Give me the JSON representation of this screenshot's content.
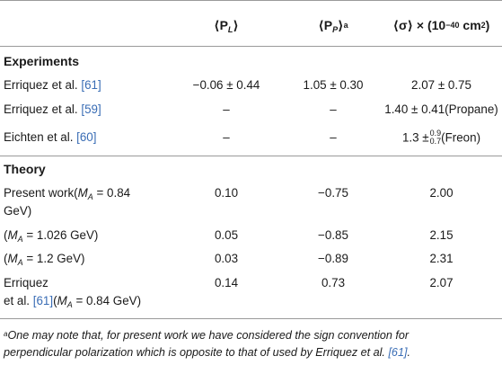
{
  "header": {
    "col1": "⟨P",
    "col1_sub": "L",
    "col1_close": "⟩",
    "col2": "⟨P",
    "col2_sub": "P",
    "col2_close": "⟩",
    "col2_sup": "a",
    "col3_pre": "⟨σ⟩ × (10",
    "col3_exp": "−40",
    "col3_mid": " cm",
    "col3_exp2": "2",
    "col3_post": ")"
  },
  "sections": {
    "experiments": "Experiments",
    "theory": "Theory"
  },
  "experiments": [
    {
      "ref_text": "Erriquez et al. ",
      "ref": "[61]",
      "pl": "−0.06 ± 0.44",
      "pp": "1.05 ± 0.30",
      "sigma": "2.07 ± 0.75"
    },
    {
      "ref_text": "Erriquez et al. ",
      "ref": "[59]",
      "pl": "–",
      "pp": "–",
      "sigma": "1.40 ± 0.41(Propane)"
    },
    {
      "ref_text": "Eichten et al. ",
      "ref": "[60]",
      "pl": "–",
      "pp": "–",
      "sigma_base": "1.3 ±",
      "sigma_up": "0.9",
      "sigma_down": "0.7",
      "sigma_tail": "(Freon)"
    }
  ],
  "theory": [
    {
      "label_line1_pre": "Present work(",
      "label_line1_var": "M",
      "label_line1_sub": "A",
      "label_line1_post": " = 0.84",
      "label_line2": "GeV)",
      "pl": "0.10",
      "pp": "−0.75",
      "sigma": "2.00"
    },
    {
      "label_pre": "(",
      "label_var": "M",
      "label_sub": "A",
      "label_post": " = 1.026 GeV)",
      "pl": "0.05",
      "pp": "−0.85",
      "sigma": "2.15"
    },
    {
      "label_pre": "(",
      "label_var": "M",
      "label_sub": "A",
      "label_post": " = 1.2 GeV)",
      "pl": "0.03",
      "pp": "−0.89",
      "sigma": "2.31"
    },
    {
      "label_line1": "Erriquez",
      "label_line2_pre": "et al. ",
      "label_ref": "[61]",
      "label_line2_mid": "(",
      "label_var": "M",
      "label_sub": "A",
      "label_line2_post": " = 0.84 GeV)",
      "pl": "0.14",
      "pp": "0.73",
      "sigma": "2.07"
    }
  ],
  "footnote": {
    "mark": "a",
    "line1": "One may note that, for present work we have considered the sign convention for",
    "line2_pre": "perpendicular polarization which is opposite to that of used by Erriquez et al. ",
    "line2_ref": "[61]",
    "line2_post": "."
  }
}
